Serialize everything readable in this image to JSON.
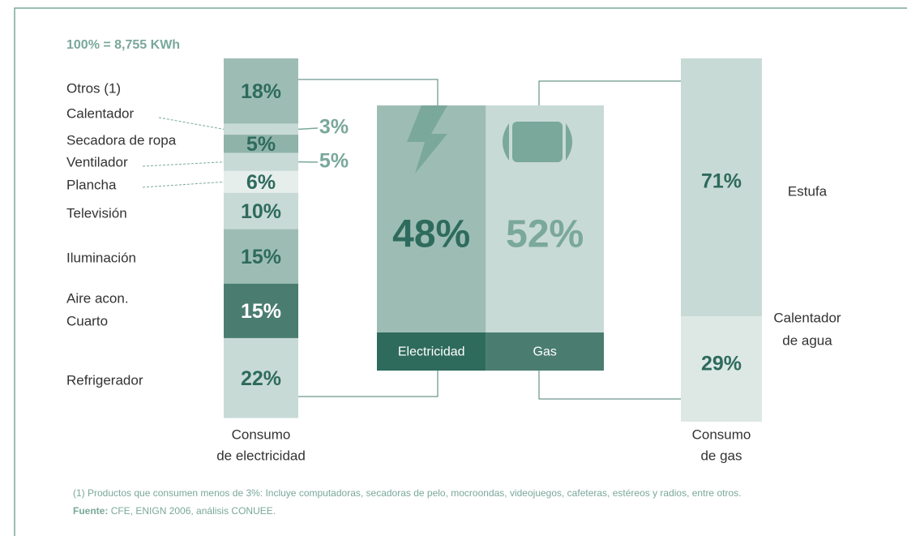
{
  "header": "100% = 8,755 KWh",
  "electricity": {
    "caption": [
      "Consumo",
      "de electricidad"
    ],
    "segments": [
      {
        "name": [
          "Otros (1)"
        ],
        "value": 18,
        "label": "18%",
        "color": "#9dbdb4"
      },
      {
        "name": [
          "Calentador"
        ],
        "value": 3,
        "label": "3%",
        "color": "#c8dad6"
      },
      {
        "name": [
          "Secadora de ropa"
        ],
        "value": 5,
        "label": "5%",
        "color": "#8fb3a9"
      },
      {
        "name": [
          "Ventilador"
        ],
        "value": 5,
        "label": "5%",
        "color": "#c8dad6"
      },
      {
        "name": [
          "Plancha"
        ],
        "value": 6,
        "label": "6%",
        "color": "#e6eeec"
      },
      {
        "name": [
          "Televisión"
        ],
        "value": 10,
        "label": "10%",
        "color": "#c8dad6"
      },
      {
        "name": [
          "Iluminación"
        ],
        "value": 15,
        "label": "15%",
        "color": "#9dbdb4"
      },
      {
        "name": [
          "Aire acon.",
          "Cuarto"
        ],
        "value": 15,
        "label": "15%",
        "color": "#4a7d70"
      },
      {
        "name": [
          "Refrigerador"
        ],
        "value": 22,
        "label": "22%",
        "color": "#c8dad6"
      }
    ]
  },
  "sources": {
    "segments": [
      {
        "name": "Electricidad",
        "value": 48,
        "label": "48%",
        "color": "#9dbdb4",
        "band": "#2e6b5c"
      },
      {
        "name": "Gas",
        "value": 52,
        "label": "52%",
        "color": "#c8dad6",
        "band": "#4a7d70"
      }
    ]
  },
  "gas": {
    "caption": [
      "Consumo",
      "de gas"
    ],
    "segments": [
      {
        "name": [
          "Estufa"
        ],
        "value": 71,
        "label": "71%",
        "color": "#c8dad6"
      },
      {
        "name": [
          "Calentador",
          "de agua"
        ],
        "value": 29,
        "label": "29%",
        "color": "#dde8e5"
      }
    ]
  },
  "footnote": "(1) Productos que consumen menos de 3%: Incluye computadoras, secadoras de pelo, mocroondas, videojuegos, cafeteras, estéreos y radios, entre otros.",
  "source": {
    "label": "Fuente:",
    "text": "CFE, ENIGN 2006, análisis CONUEE."
  }
}
